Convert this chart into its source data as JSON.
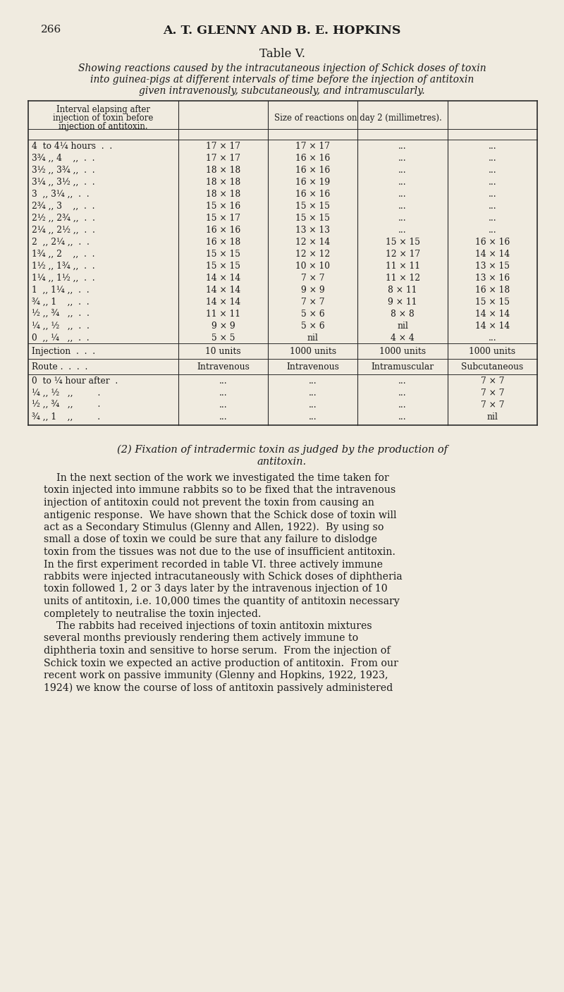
{
  "page_number": "266",
  "page_header": "A. T. GLENNY AND B. E. HOPKINS",
  "table_title": "Table V.",
  "table_subtitle_lines": [
    "Showing reactions caused by the intracutaneous injection of Schick doses of toxin",
    "into guinea-pigs at different intervals of time before the injection of antitoxin",
    "given intravenously, subcutaneously, and intramuscularly."
  ],
  "col_header_left_lines": [
    "Interval elapsing after",
    "injection of toxin before",
    "injection of antitoxin."
  ],
  "col_header_right": "Size of reactions on day 2 (millimetres).",
  "table_rows": [
    [
      "4  to 4¼ hours  .  .",
      "17 × 17",
      "17 × 17",
      "...",
      "..."
    ],
    [
      "3¾ ,, 4    ,,  .  .",
      "17 × 17",
      "16 × 16",
      "...",
      "..."
    ],
    [
      "3½ ,, 3¾ ,,  .  .",
      "18 × 18",
      "16 × 16",
      "...",
      "..."
    ],
    [
      "3¼ ,, 3½ ,,  .  .",
      "18 × 18",
      "16 × 19",
      "...",
      "..."
    ],
    [
      "3  ,, 3¼ ,,  .  .",
      "18 × 18",
      "16 × 16",
      "...",
      "..."
    ],
    [
      "2¾ ,, 3    ,,  .  .",
      "15 × 16",
      "15 × 15",
      "...",
      "..."
    ],
    [
      "2½ ,, 2¾ ,,  .  .",
      "15 × 17",
      "15 × 15",
      "...",
      "..."
    ],
    [
      "2¼ ,, 2½ ,,  .  .",
      "16 × 16",
      "13 × 13",
      "...",
      "..."
    ],
    [
      "2  ,, 2¼ ,,  .  .",
      "16 × 18",
      "12 × 14",
      "15 × 15",
      "16 × 16"
    ],
    [
      "1¾ ,, 2    ,,  .  .",
      "15 × 15",
      "12 × 12",
      "12 × 17",
      "14 × 14"
    ],
    [
      "1½ ,, 1¾ ,,  .  .",
      "15 × 15",
      "10 × 10",
      "11 × 11",
      "13 × 15"
    ],
    [
      "1¼ ,, 1½ ,,  .  .",
      "14 × 14",
      "7 × 7",
      "11 × 12",
      "13 × 16"
    ],
    [
      "1  ,, 1¼ ,,  .  .",
      "14 × 14",
      "9 × 9",
      "8 × 11",
      "16 × 18"
    ],
    [
      "¾ ,, 1    ,,  .  .",
      "14 × 14",
      "7 × 7",
      "9 × 11",
      "15 × 15"
    ],
    [
      "½ ,, ¾   ,,  .  .",
      "11 × 11",
      "5 × 6",
      "8 × 8",
      "14 × 14"
    ],
    [
      "¼ ,, ½   ,,  .  .",
      "9 × 9",
      "5 × 6",
      "nil",
      "14 × 14"
    ],
    [
      "0  ,, ¼   ,,  .  .",
      "5 × 5",
      "nil",
      "4 × 4",
      "..."
    ]
  ],
  "injection_row": [
    "Injection  .  .  .",
    "10 units",
    "1000 units",
    "1000 units",
    "1000 units"
  ],
  "route_row": [
    "Route .  .  .  .",
    "Intravenous",
    "Intravenous",
    "Intramuscular",
    "Subcutaneous"
  ],
  "after_rows": [
    [
      "0  to ¼ hour after  .",
      "...",
      "...",
      "...",
      "7 × 7"
    ],
    [
      "¼ ,, ½   ,,         .",
      "...",
      "...",
      "...",
      "7 × 7"
    ],
    [
      "½ ,, ¾   ,,         .",
      "...",
      "...",
      "...",
      "7 × 7"
    ],
    [
      "¾ ,, 1    ,,         .",
      "...",
      "...",
      "...",
      "nil"
    ]
  ],
  "section_heading_line1": "(2) Fixation of intradermic toxin as judged by the production of",
  "section_heading_line2": "antitoxin.",
  "body_text_lines": [
    "    In the next section of the work we investigated the time taken for",
    "toxin injected into immune rabbits so to be fixed that the intravenous",
    "injection of antitoxin could not prevent the toxin from causing an",
    "antigenic response.  We have shown that the Schick dose of toxin will",
    "act as a Secondary Stimulus (Glenny and Allen, 1922).  By using so",
    "small a dose of toxin we could be sure that any failure to dislodge",
    "toxin from the tissues was not due to the use of insufficient antitoxin.",
    "In the first experiment recorded in table VI. three actively immune",
    "rabbits were injected intracutaneously with Schick doses of diphtheria",
    "toxin followed 1, 2 or 3 days later by the intravenous injection of 10",
    "units of antitoxin, i.e. 10,000 times the quantity of antitoxin necessary",
    "completely to neutralise the toxin injected.",
    "    The rabbits had received injections of toxin antitoxin mixtures",
    "several months previously rendering them actively immune to",
    "diphtheria toxin and sensitive to horse serum.  From the injection of",
    "Schick toxin we expected an active production of antitoxin.  From our",
    "recent work on passive immunity (Glenny and Hopkins, 1922, 1923,",
    "1924) we know the course of loss of antitoxin passively administered"
  ],
  "bg_color": "#f0ebe0",
  "text_color": "#1a1a1a",
  "table_border_color": "#2a2a2a"
}
